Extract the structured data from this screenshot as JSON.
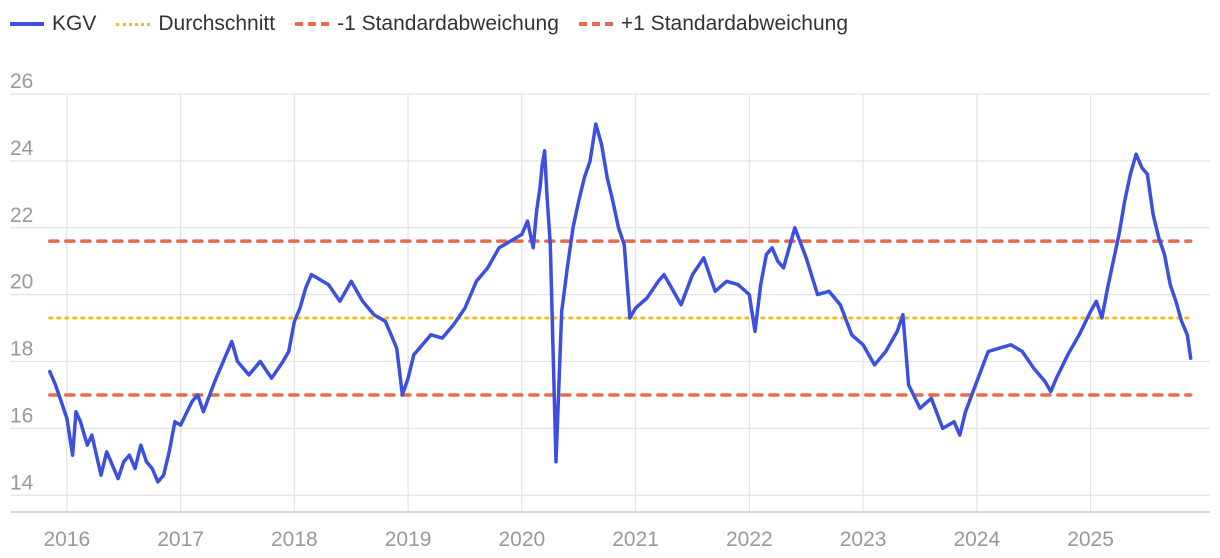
{
  "chart_data": {
    "type": "line",
    "title": "",
    "xlabel": "",
    "ylabel": "",
    "ylim": [
      13.5,
      26
    ],
    "xlim": [
      2015.5,
      2026.05
    ],
    "grid": true,
    "legend_position": "top-left",
    "y_ticks": [
      "14",
      "16",
      "18",
      "20",
      "22",
      "24",
      "26"
    ],
    "x_ticks": [
      "2016",
      "2017",
      "2018",
      "2019",
      "2020",
      "2021",
      "2022",
      "2023",
      "2024",
      "2025"
    ],
    "series": [
      {
        "name": "KGV",
        "color": "#3b4fe0",
        "style": "solid",
        "x": [
          2015.85,
          2015.9,
          2015.95,
          2016.0,
          2016.05,
          2016.08,
          2016.12,
          2016.18,
          2016.22,
          2016.3,
          2016.35,
          2016.45,
          2016.5,
          2016.55,
          2016.6,
          2016.65,
          2016.7,
          2016.75,
          2016.8,
          2016.85,
          2016.9,
          2016.95,
          2017.0,
          2017.1,
          2017.15,
          2017.2,
          2017.3,
          2017.4,
          2017.45,
          2017.5,
          2017.6,
          2017.7,
          2017.8,
          2017.9,
          2017.95,
          2018.0,
          2018.05,
          2018.1,
          2018.15,
          2018.2,
          2018.3,
          2018.4,
          2018.5,
          2018.6,
          2018.7,
          2018.8,
          2018.9,
          2018.95,
          2019.0,
          2019.05,
          2019.1,
          2019.2,
          2019.3,
          2019.4,
          2019.5,
          2019.6,
          2019.7,
          2019.8,
          2019.9,
          2020.0,
          2020.05,
          2020.1,
          2020.13,
          2020.16,
          2020.18,
          2020.2,
          2020.22,
          2020.25,
          2020.3,
          2020.35,
          2020.4,
          2020.45,
          2020.5,
          2020.55,
          2020.6,
          2020.65,
          2020.7,
          2020.75,
          2020.8,
          2020.85,
          2020.9,
          2020.95,
          2021.0,
          2021.1,
          2021.2,
          2021.25,
          2021.3,
          2021.4,
          2021.5,
          2021.6,
          2021.7,
          2021.8,
          2021.9,
          2022.0,
          2022.05,
          2022.1,
          2022.15,
          2022.2,
          2022.25,
          2022.3,
          2022.4,
          2022.5,
          2022.6,
          2022.7,
          2022.8,
          2022.9,
          2023.0,
          2023.1,
          2023.2,
          2023.3,
          2023.35,
          2023.4,
          2023.5,
          2023.6,
          2023.7,
          2023.8,
          2023.85,
          2023.9,
          2024.0,
          2024.1,
          2024.2,
          2024.3,
          2024.4,
          2024.5,
          2024.6,
          2024.65,
          2024.7,
          2024.8,
          2024.9,
          2025.0,
          2025.05,
          2025.1,
          2025.15,
          2025.2,
          2025.25,
          2025.3,
          2025.35,
          2025.4,
          2025.45,
          2025.5,
          2025.55,
          2025.6,
          2025.65,
          2025.7,
          2025.75,
          2025.8,
          2025.85,
          2025.88
        ],
        "y": [
          17.7,
          17.3,
          16.8,
          16.3,
          15.2,
          16.5,
          16.2,
          15.5,
          15.8,
          14.6,
          15.3,
          14.5,
          15.0,
          15.2,
          14.8,
          15.5,
          15.0,
          14.8,
          14.4,
          14.6,
          15.3,
          16.2,
          16.1,
          16.8,
          17.0,
          16.5,
          17.4,
          18.2,
          18.6,
          18.0,
          17.6,
          18.0,
          17.5,
          18.0,
          18.3,
          19.2,
          19.6,
          20.2,
          20.6,
          20.5,
          20.3,
          19.8,
          20.4,
          19.8,
          19.4,
          19.2,
          18.4,
          17.0,
          17.5,
          18.2,
          18.4,
          18.8,
          18.7,
          19.1,
          19.6,
          20.4,
          20.8,
          21.4,
          21.6,
          21.8,
          22.2,
          21.4,
          22.5,
          23.2,
          23.9,
          24.3,
          23.0,
          21.5,
          15.0,
          19.5,
          20.8,
          22.0,
          22.8,
          23.5,
          24.0,
          25.1,
          24.5,
          23.5,
          22.8,
          22.0,
          21.5,
          19.3,
          19.6,
          19.9,
          20.4,
          20.6,
          20.3,
          19.7,
          20.6,
          21.1,
          20.1,
          20.4,
          20.3,
          20.0,
          18.9,
          20.3,
          21.2,
          21.4,
          21.0,
          20.8,
          22.0,
          21.1,
          20.0,
          20.1,
          19.7,
          18.8,
          18.5,
          17.9,
          18.3,
          18.9,
          19.4,
          17.3,
          16.6,
          16.9,
          16.0,
          16.2,
          15.8,
          16.5,
          17.4,
          18.3,
          18.4,
          18.5,
          18.3,
          17.8,
          17.4,
          17.1,
          17.5,
          18.2,
          18.8,
          19.5,
          19.8,
          19.3,
          20.2,
          21.0,
          21.8,
          22.8,
          23.6,
          24.2,
          23.8,
          23.6,
          22.4,
          21.7,
          21.2,
          20.3,
          19.8,
          19.2,
          18.8,
          18.1
        ]
      },
      {
        "name": "Durchschnitt",
        "color": "#f2bc1b",
        "style": "dotted",
        "value": 19.3
      },
      {
        "name": "-1 Standardabweichung",
        "color": "#e86a4a",
        "style": "dashed",
        "value": 17.0
      },
      {
        "name": "+1 Standardabweichung",
        "color": "#e86a4a",
        "style": "dashed",
        "value": 21.6
      }
    ]
  }
}
